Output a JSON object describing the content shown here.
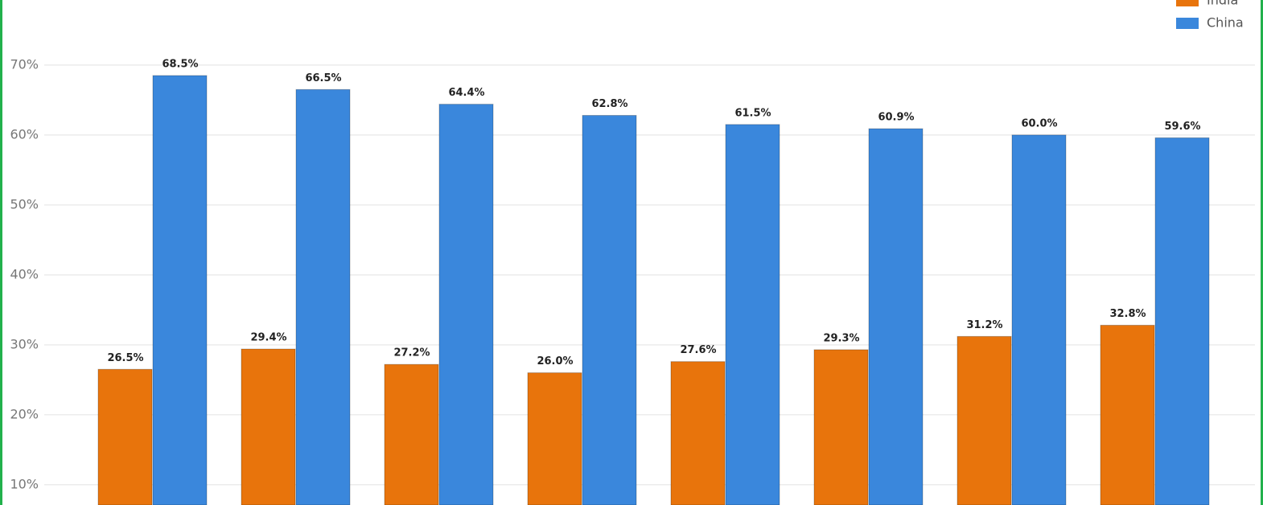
{
  "chart_data": {
    "type": "bar",
    "categories": [
      null,
      null,
      null,
      null,
      null,
      null,
      null,
      null
    ],
    "series": [
      {
        "name": "India",
        "color": "#e8740c",
        "values": [
          26.5,
          29.4,
          27.2,
          26.0,
          27.6,
          29.3,
          31.2,
          32.8
        ],
        "value_labels": [
          "26.5%",
          "29.4%",
          "27.2%",
          "26.0%",
          "27.6%",
          "29.3%",
          "31.2%",
          "32.8%"
        ]
      },
      {
        "name": "China",
        "color": "#3a87dc",
        "values": [
          68.5,
          66.5,
          64.4,
          62.8,
          61.5,
          60.9,
          60.0,
          59.6
        ],
        "value_labels": [
          "68.5%",
          "66.5%",
          "64.4%",
          "62.8%",
          "61.5%",
          "60.9%",
          "60.0%",
          "59.6%"
        ]
      }
    ],
    "ylim": [
      7.1,
      79.3
    ],
    "yticks": [
      {
        "value": 10,
        "label": "10%"
      },
      {
        "value": 20,
        "label": "20%"
      },
      {
        "value": 30,
        "label": "30%"
      },
      {
        "value": 40,
        "label": "40%"
      },
      {
        "value": 50,
        "label": "50%"
      },
      {
        "value": 60,
        "label": "60%"
      },
      {
        "value": 70,
        "label": "70%"
      }
    ],
    "grid": true,
    "legend": "top-right"
  }
}
